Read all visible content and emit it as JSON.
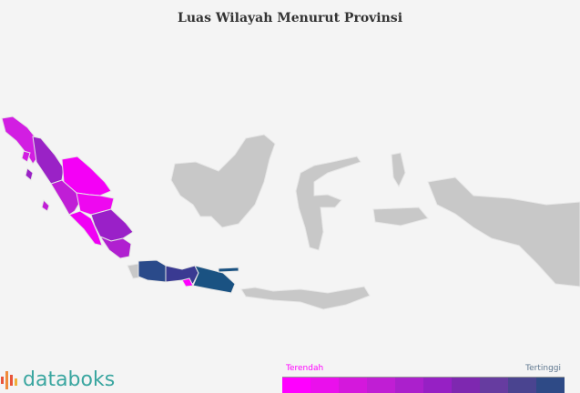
{
  "title": "Luas Wilayah Menurut Provinsi",
  "logo": {
    "text": "databoks",
    "bar_colors": [
      "#e8553a",
      "#f08a3a",
      "#e8553a",
      "#f0b03a",
      "#e8553a"
    ]
  },
  "legend": {
    "low_label": "Terendah",
    "high_label": "Tertinggi",
    "low_color": "#ff00ff",
    "high_color": "#607890",
    "scale": [
      "#ff00ff",
      "#ea10ec",
      "#d418dc",
      "#c01ed4",
      "#ab20cc",
      "#9620c4",
      "#7e28b0",
      "#663ca0",
      "#4a4490",
      "#2e4a86"
    ]
  },
  "map": {
    "no_data_color": "#c8c8c8",
    "border_color": "#e8e8e8"
  }
}
